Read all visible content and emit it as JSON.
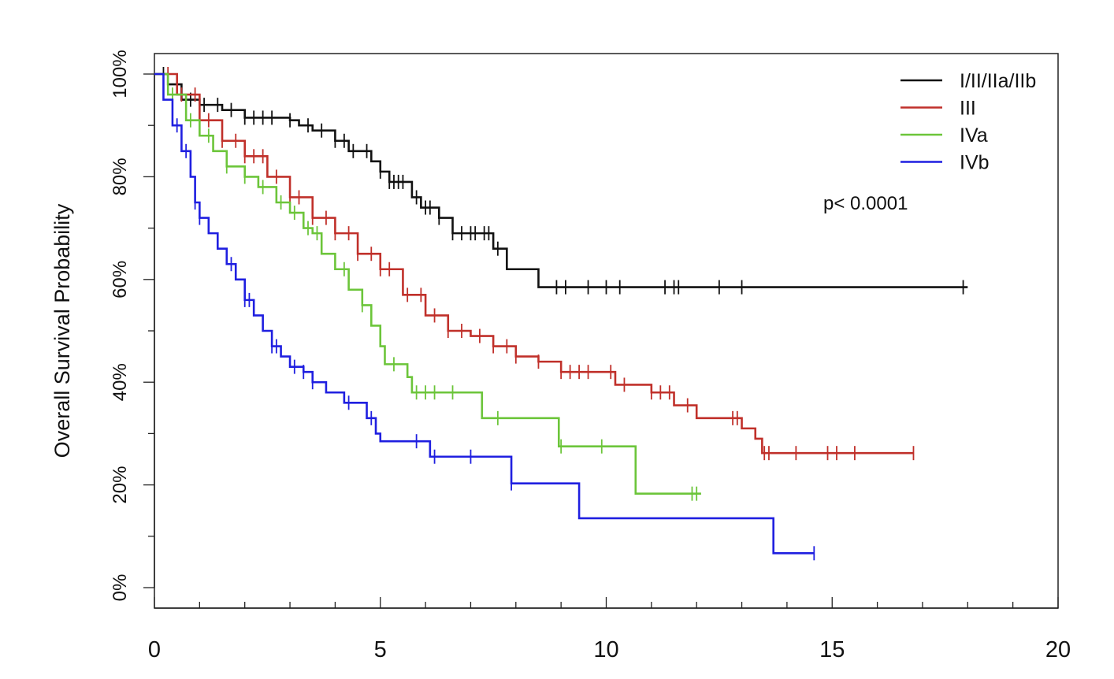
{
  "chart_data": {
    "type": "line",
    "subtype": "kaplan-meier step",
    "title": "",
    "xlabel": "",
    "ylabel": "Overall Survival Probability",
    "xlim": [
      0,
      20
    ],
    "ylim": [
      0,
      100
    ],
    "x_ticks": [
      "0",
      "5",
      "10",
      "15",
      "20"
    ],
    "x_tick_values": [
      0,
      5,
      10,
      15,
      20
    ],
    "y_ticks": [
      "0%",
      "20%",
      "40%",
      "60%",
      "80%",
      "100%"
    ],
    "y_tick_values": [
      0,
      20,
      40,
      60,
      80,
      100
    ],
    "grid": false,
    "legend_position": "top-right",
    "annotation": "p< 0.0001",
    "series": [
      {
        "name": "I/II/IIa/IIb",
        "color": "#111111",
        "steps": [
          [
            0,
            100
          ],
          [
            0.3,
            98
          ],
          [
            0.6,
            95
          ],
          [
            1,
            94
          ],
          [
            1.5,
            93
          ],
          [
            2,
            91.5
          ],
          [
            3,
            91
          ],
          [
            3.2,
            90
          ],
          [
            3.5,
            89
          ],
          [
            4,
            87
          ],
          [
            4.3,
            85
          ],
          [
            4.8,
            83
          ],
          [
            5,
            81
          ],
          [
            5.2,
            79
          ],
          [
            5.7,
            76
          ],
          [
            5.9,
            74
          ],
          [
            6.3,
            72
          ],
          [
            6.6,
            69
          ],
          [
            7.5,
            66
          ],
          [
            7.8,
            62
          ],
          [
            8.5,
            58.5
          ]
        ],
        "end": 18,
        "censored": [
          0.2,
          0.5,
          0.8,
          1.1,
          1.4,
          1.7,
          2,
          2.2,
          2.4,
          2.6,
          3,
          3.4,
          3.7,
          4,
          4.2,
          4.4,
          4.7,
          5,
          5.2,
          5.3,
          5.4,
          5.5,
          5.8,
          6,
          6.1,
          6.3,
          6.6,
          6.8,
          7,
          7.1,
          7.3,
          7.4,
          7.6,
          8.9,
          9.1,
          9.6,
          10,
          10.3,
          11.3,
          11.5,
          11.6,
          12.5,
          13,
          17.9
        ]
      },
      {
        "name": "III",
        "color": "#c0302a",
        "steps": [
          [
            0,
            100
          ],
          [
            0.5,
            96
          ],
          [
            1,
            91
          ],
          [
            1.5,
            87
          ],
          [
            2,
            84
          ],
          [
            2.5,
            80
          ],
          [
            3,
            76
          ],
          [
            3.5,
            72
          ],
          [
            4,
            69
          ],
          [
            4.5,
            65
          ],
          [
            5,
            62
          ],
          [
            5.5,
            57
          ],
          [
            6,
            53
          ],
          [
            6.5,
            50
          ],
          [
            7,
            49
          ],
          [
            7.5,
            47
          ],
          [
            8,
            45
          ],
          [
            8.5,
            44
          ],
          [
            9,
            42
          ],
          [
            10.2,
            39.5
          ],
          [
            11,
            38
          ],
          [
            11.5,
            35.5
          ],
          [
            12,
            33
          ],
          [
            13,
            31
          ],
          [
            13.3,
            29
          ],
          [
            13.45,
            26.2
          ]
        ],
        "end": 16.8,
        "censored": [
          0.3,
          0.6,
          0.9,
          1.2,
          1.5,
          1.8,
          2,
          2.2,
          2.4,
          2.7,
          3,
          3.2,
          3.5,
          3.8,
          4,
          4.3,
          4.5,
          4.8,
          5,
          5.2,
          5.6,
          5.9,
          6.2,
          6.5,
          6.8,
          7.2,
          7.5,
          7.8,
          8,
          8.5,
          9,
          9.2,
          9.4,
          9.6,
          10.1,
          10.4,
          11,
          11.2,
          11.4,
          11.8,
          12.8,
          12.9,
          13.5,
          13.6,
          14.2,
          14.9,
          15.1,
          15.5,
          16.8
        ]
      },
      {
        "name": "IVa",
        "color": "#6cc53a",
        "steps": [
          [
            0,
            100
          ],
          [
            0.3,
            96
          ],
          [
            0.7,
            91
          ],
          [
            1,
            88
          ],
          [
            1.3,
            85
          ],
          [
            1.6,
            82
          ],
          [
            2,
            80
          ],
          [
            2.3,
            78
          ],
          [
            2.7,
            75
          ],
          [
            3,
            73
          ],
          [
            3.3,
            70
          ],
          [
            3.5,
            69
          ],
          [
            3.7,
            65
          ],
          [
            4,
            62
          ],
          [
            4.3,
            58
          ],
          [
            4.6,
            55
          ],
          [
            4.8,
            51
          ],
          [
            5,
            47
          ],
          [
            5.1,
            43.5
          ],
          [
            5.6,
            41
          ],
          [
            5.7,
            38
          ],
          [
            7.25,
            33
          ],
          [
            8.95,
            27.5
          ],
          [
            10.65,
            18.3
          ]
        ],
        "end": 12.1,
        "censored": [
          0.4,
          0.8,
          1.2,
          1.6,
          2,
          2.4,
          2.8,
          3.1,
          3.4,
          3.6,
          4.2,
          4.6,
          5.3,
          5.8,
          6,
          6.2,
          6.6,
          7.6,
          9,
          9.9,
          11.9,
          12
        ]
      },
      {
        "name": "IVb",
        "color": "#1f1fe0",
        "steps": [
          [
            0,
            100
          ],
          [
            0.2,
            95
          ],
          [
            0.4,
            90
          ],
          [
            0.6,
            85
          ],
          [
            0.8,
            80
          ],
          [
            0.9,
            75
          ],
          [
            1,
            72
          ],
          [
            1.2,
            69
          ],
          [
            1.4,
            66
          ],
          [
            1.6,
            63
          ],
          [
            1.8,
            60
          ],
          [
            2,
            56
          ],
          [
            2.2,
            53
          ],
          [
            2.4,
            50
          ],
          [
            2.6,
            47
          ],
          [
            2.8,
            45
          ],
          [
            3,
            43
          ],
          [
            3.3,
            42
          ],
          [
            3.5,
            40
          ],
          [
            3.8,
            38
          ],
          [
            4.2,
            36
          ],
          [
            4.7,
            33
          ],
          [
            4.9,
            30
          ],
          [
            5,
            28.5
          ],
          [
            6.1,
            25.5
          ],
          [
            7.9,
            20.3
          ],
          [
            9.4,
            13.5
          ],
          [
            13.7,
            6.7
          ]
        ],
        "end": 14.6,
        "censored": [
          0.5,
          0.7,
          0.9,
          1,
          1.7,
          2,
          2.1,
          2.6,
          2.7,
          3.1,
          3.3,
          3.5,
          4.3,
          4.8,
          5.8,
          6.2,
          7,
          7.9,
          14.6
        ]
      }
    ]
  }
}
